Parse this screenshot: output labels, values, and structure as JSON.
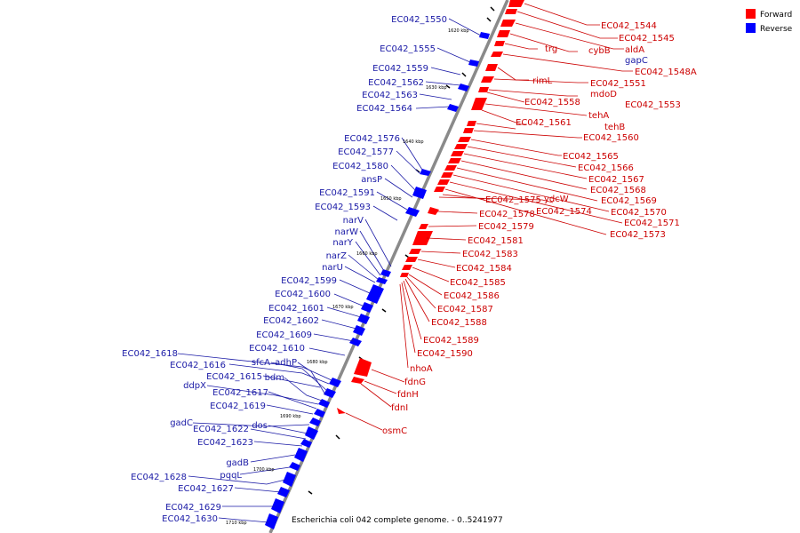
{
  "legend": {
    "forward_label": "Forward",
    "reverse_label": "Reverse",
    "forward_color": "#ff0000",
    "reverse_color": "#0000ff"
  },
  "caption": "Escherichia coli 042 complete genome. - 0..5241977",
  "ticks": [
    "1620 kbp",
    "1630 kbp",
    "1640 kbp",
    "1650 kbp",
    "1660 kbp",
    "1670 kbp",
    "1680 kbp",
    "1690 kbp",
    "1700 kbp",
    "1710 kbp"
  ],
  "forward_genes": [
    "EC042_1544",
    "EC042_1545",
    "aldA",
    "cybB",
    "trg",
    "EC042_1548A",
    "rimL",
    "EC042_1551",
    "mdoD",
    "EC042_1553",
    "EC042_1558",
    "tehA",
    "tehB",
    "EC042_1561",
    "EC042_1560",
    "EC042_1565",
    "EC042_1566",
    "EC042_1567",
    "EC042_1568",
    "EC042_1569",
    "ydcW",
    "EC042_1575",
    "EC042_1570",
    "EC042_1574",
    "EC042_1578",
    "EC042_1571",
    "EC042_1579",
    "EC042_1573",
    "EC042_1581",
    "EC042_1583",
    "EC042_1584",
    "EC042_1585",
    "EC042_1586",
    "EC042_1587",
    "EC042_1588",
    "EC042_1589",
    "EC042_1590",
    "nhoA",
    "fdnG",
    "fdnH",
    "fdnI",
    "osmC"
  ],
  "reverse_genes": [
    "gapC",
    "EC042_1550",
    "EC042_1555",
    "EC042_1559",
    "EC042_1562",
    "EC042_1563",
    "EC042_1564",
    "EC042_1576",
    "EC042_1577",
    "EC042_1580",
    "ansP",
    "EC042_1591",
    "EC042_1593",
    "narV",
    "narW",
    "narY",
    "narZ",
    "narU",
    "EC042_1599",
    "EC042_1600",
    "EC042_1601",
    "EC042_1602",
    "EC042_1609",
    "EC042_1610",
    "EC042_1618",
    "EC042_1616",
    "sfcA",
    "adhP",
    "EC042_1615",
    "bdm",
    "ddpX",
    "EC042_1617",
    "EC042_1619",
    "gadC",
    "dos",
    "EC042_1622",
    "EC042_1623",
    "gadB",
    "pqqL",
    "EC042_1628",
    "EC042_1627",
    "EC042_1629",
    "EC042_1630"
  ]
}
